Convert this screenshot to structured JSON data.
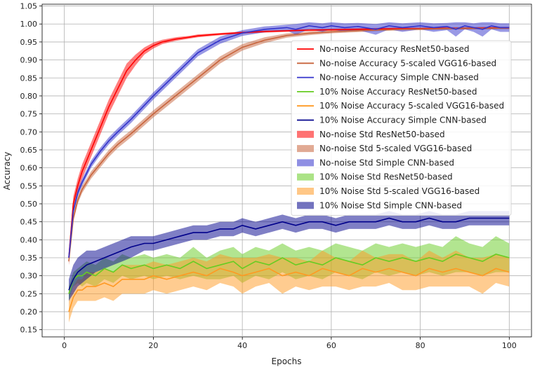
{
  "chart_data": {
    "type": "line",
    "title": "",
    "xlabel": "Epochs",
    "ylabel": "Accuracy",
    "xlim": [
      -5,
      105
    ],
    "ylim": [
      0.13,
      1.055
    ],
    "x_ticks": [
      0,
      20,
      40,
      60,
      80,
      100
    ],
    "y_ticks": [
      0.15,
      0.2,
      0.25,
      0.3,
      0.35,
      0.4,
      0.45,
      0.5,
      0.55,
      0.6,
      0.65,
      0.7,
      0.75,
      0.8,
      0.85,
      0.9,
      0.95,
      1.0,
      1.05
    ],
    "grid": true,
    "legend_position": "upper-right",
    "legend_entries": [
      {
        "label": "No-noise Accuracy ResNet50-based",
        "kind": "line",
        "color": "#ff0000"
      },
      {
        "label": "No-noise Accuracy 5-scaled VGG16-based",
        "kind": "line",
        "color": "#c8643c"
      },
      {
        "label": "No-noise Accuracy Simple CNN-based",
        "kind": "line",
        "color": "#3333cc"
      },
      {
        "label": "10% Noise Accuracy ResNet50-based",
        "kind": "line",
        "color": "#66cc22"
      },
      {
        "label": "10% Noise Accuracy 5-scaled VGG16-based",
        "kind": "line",
        "color": "#ff9922"
      },
      {
        "label": "10% Noise Accuracy Simple CNN-based",
        "kind": "line",
        "color": "#00008b"
      },
      {
        "label": "No-noise Std ResNet50-based",
        "kind": "band",
        "color": "#ff0000",
        "opacity": 0.55
      },
      {
        "label": "No-noise Std 5-scaled VGG16-based",
        "kind": "band",
        "color": "#c8643c",
        "opacity": 0.55
      },
      {
        "label": "No-noise Std Simple CNN-based",
        "kind": "band",
        "color": "#3333cc",
        "opacity": 0.55
      },
      {
        "label": "10% Noise Std ResNet50-based",
        "kind": "band",
        "color": "#66cc22",
        "opacity": 0.55
      },
      {
        "label": "10% Noise Std 5-scaled VGG16-based",
        "kind": "band",
        "color": "#ff9922",
        "opacity": 0.55
      },
      {
        "label": "10% Noise Std Simple CNN-based",
        "kind": "band",
        "color": "#00008b",
        "opacity": 0.55
      }
    ],
    "series": [
      {
        "key": "nn_resnet",
        "color": "#ff0000",
        "x": [
          1,
          2,
          3,
          4,
          5,
          6,
          8,
          10,
          12,
          14,
          16,
          18,
          20,
          22,
          25,
          28,
          30,
          35,
          40,
          45,
          50,
          55,
          60,
          65,
          70,
          75,
          80,
          85,
          90,
          95,
          100
        ],
        "y": [
          0.35,
          0.5,
          0.55,
          0.59,
          0.62,
          0.65,
          0.71,
          0.77,
          0.82,
          0.87,
          0.9,
          0.925,
          0.94,
          0.95,
          0.958,
          0.963,
          0.967,
          0.972,
          0.976,
          0.979,
          0.981,
          0.983,
          0.984,
          0.985,
          0.986,
          0.987,
          0.987,
          0.988,
          0.988,
          0.989,
          0.989
        ],
        "std": [
          0.02,
          0.02,
          0.02,
          0.02,
          0.02,
          0.02,
          0.02,
          0.02,
          0.02,
          0.02,
          0.015,
          0.01,
          0.008,
          0.006,
          0.005,
          0.004,
          0.004,
          0.003,
          0.003,
          0.003,
          0.003,
          0.003,
          0.003,
          0.003,
          0.003,
          0.003,
          0.003,
          0.003,
          0.003,
          0.003,
          0.003
        ]
      },
      {
        "key": "nn_vgg",
        "color": "#c8643c",
        "x": [
          1,
          2,
          3,
          4,
          5,
          6,
          8,
          10,
          12,
          15,
          20,
          25,
          30,
          35,
          40,
          45,
          50,
          55,
          60,
          65,
          70,
          75,
          80,
          85,
          90,
          95,
          100
        ],
        "y": [
          0.34,
          0.46,
          0.51,
          0.54,
          0.56,
          0.58,
          0.61,
          0.64,
          0.665,
          0.695,
          0.75,
          0.8,
          0.85,
          0.9,
          0.935,
          0.955,
          0.968,
          0.974,
          0.978,
          0.981,
          0.983,
          0.985,
          0.986,
          0.987,
          0.988,
          0.988,
          0.989
        ],
        "std": [
          0.01,
          0.01,
          0.01,
          0.01,
          0.01,
          0.01,
          0.01,
          0.01,
          0.01,
          0.01,
          0.01,
          0.01,
          0.01,
          0.01,
          0.009,
          0.008,
          0.006,
          0.005,
          0.004,
          0.004,
          0.003,
          0.003,
          0.003,
          0.003,
          0.003,
          0.003,
          0.003
        ]
      },
      {
        "key": "nn_cnn",
        "color": "#3333cc",
        "x": [
          1,
          2,
          3,
          4,
          5,
          6,
          8,
          10,
          12,
          15,
          20,
          25,
          30,
          35,
          40,
          45,
          50,
          52,
          55,
          58,
          60,
          63,
          66,
          70,
          73,
          76,
          80,
          83,
          86,
          88,
          90,
          92,
          94,
          96,
          98,
          100
        ],
        "y": [
          0.35,
          0.48,
          0.53,
          0.56,
          0.585,
          0.61,
          0.645,
          0.675,
          0.7,
          0.735,
          0.8,
          0.86,
          0.92,
          0.955,
          0.975,
          0.985,
          0.99,
          0.985,
          0.995,
          0.99,
          0.995,
          0.99,
          0.993,
          0.985,
          0.995,
          0.99,
          0.995,
          0.99,
          0.993,
          0.985,
          0.995,
          0.99,
          0.985,
          0.995,
          0.99,
          0.99
        ],
        "std": [
          0.01,
          0.01,
          0.01,
          0.01,
          0.01,
          0.01,
          0.01,
          0.01,
          0.01,
          0.01,
          0.01,
          0.01,
          0.01,
          0.01,
          0.008,
          0.008,
          0.008,
          0.015,
          0.01,
          0.012,
          0.01,
          0.012,
          0.01,
          0.015,
          0.01,
          0.012,
          0.01,
          0.012,
          0.01,
          0.02,
          0.01,
          0.012,
          0.02,
          0.01,
          0.012,
          0.012
        ]
      },
      {
        "key": "noise_resnet",
        "color": "#66cc22",
        "x": [
          1,
          2,
          3,
          4,
          5,
          7,
          9,
          11,
          13,
          15,
          18,
          20,
          23,
          26,
          29,
          32,
          35,
          38,
          40,
          43,
          46,
          49,
          52,
          55,
          58,
          61,
          64,
          67,
          70,
          73,
          76,
          79,
          82,
          85,
          88,
          91,
          94,
          97,
          100
        ],
        "y": [
          0.25,
          0.29,
          0.3,
          0.3,
          0.31,
          0.3,
          0.32,
          0.31,
          0.33,
          0.32,
          0.33,
          0.32,
          0.33,
          0.32,
          0.34,
          0.32,
          0.33,
          0.34,
          0.32,
          0.34,
          0.33,
          0.35,
          0.33,
          0.34,
          0.33,
          0.35,
          0.34,
          0.33,
          0.35,
          0.34,
          0.35,
          0.34,
          0.35,
          0.34,
          0.36,
          0.35,
          0.34,
          0.36,
          0.35
        ],
        "std": [
          0.02,
          0.02,
          0.02,
          0.03,
          0.03,
          0.03,
          0.03,
          0.03,
          0.03,
          0.03,
          0.03,
          0.03,
          0.03,
          0.03,
          0.04,
          0.03,
          0.04,
          0.04,
          0.04,
          0.04,
          0.04,
          0.04,
          0.04,
          0.04,
          0.04,
          0.04,
          0.04,
          0.04,
          0.04,
          0.04,
          0.04,
          0.04,
          0.04,
          0.04,
          0.05,
          0.04,
          0.04,
          0.05,
          0.04
        ]
      },
      {
        "key": "noise_vgg",
        "color": "#ff9922",
        "x": [
          1,
          2,
          3,
          4,
          5,
          7,
          9,
          11,
          13,
          15,
          18,
          20,
          23,
          26,
          29,
          32,
          35,
          38,
          40,
          43,
          46,
          49,
          52,
          55,
          58,
          61,
          64,
          67,
          70,
          73,
          76,
          79,
          82,
          85,
          88,
          91,
          94,
          97,
          100
        ],
        "y": [
          0.2,
          0.24,
          0.26,
          0.26,
          0.27,
          0.27,
          0.28,
          0.27,
          0.29,
          0.29,
          0.29,
          0.3,
          0.29,
          0.3,
          0.31,
          0.3,
          0.32,
          0.31,
          0.3,
          0.31,
          0.32,
          0.3,
          0.31,
          0.3,
          0.32,
          0.31,
          0.3,
          0.32,
          0.31,
          0.32,
          0.31,
          0.3,
          0.32,
          0.31,
          0.32,
          0.31,
          0.3,
          0.32,
          0.31
        ],
        "std": [
          0.03,
          0.03,
          0.03,
          0.03,
          0.04,
          0.04,
          0.04,
          0.04,
          0.04,
          0.04,
          0.04,
          0.04,
          0.04,
          0.04,
          0.04,
          0.04,
          0.04,
          0.04,
          0.05,
          0.04,
          0.04,
          0.05,
          0.04,
          0.04,
          0.05,
          0.04,
          0.04,
          0.05,
          0.04,
          0.04,
          0.05,
          0.04,
          0.05,
          0.04,
          0.05,
          0.04,
          0.05,
          0.04,
          0.04
        ]
      },
      {
        "key": "noise_cnn",
        "color": "#00008b",
        "x": [
          1,
          2,
          3,
          4,
          5,
          7,
          9,
          11,
          13,
          15,
          18,
          20,
          23,
          26,
          29,
          32,
          35,
          38,
          40,
          43,
          46,
          49,
          52,
          55,
          58,
          61,
          64,
          67,
          70,
          73,
          76,
          79,
          82,
          85,
          88,
          91,
          94,
          97,
          100
        ],
        "y": [
          0.26,
          0.29,
          0.31,
          0.32,
          0.33,
          0.34,
          0.35,
          0.36,
          0.37,
          0.38,
          0.39,
          0.39,
          0.4,
          0.41,
          0.42,
          0.42,
          0.43,
          0.43,
          0.44,
          0.43,
          0.44,
          0.45,
          0.44,
          0.45,
          0.45,
          0.44,
          0.45,
          0.45,
          0.45,
          0.46,
          0.45,
          0.45,
          0.46,
          0.45,
          0.45,
          0.46,
          0.46,
          0.46,
          0.46
        ],
        "std": [
          0.03,
          0.04,
          0.04,
          0.04,
          0.04,
          0.03,
          0.03,
          0.03,
          0.03,
          0.03,
          0.02,
          0.02,
          0.02,
          0.02,
          0.02,
          0.02,
          0.02,
          0.02,
          0.02,
          0.02,
          0.02,
          0.02,
          0.02,
          0.02,
          0.02,
          0.02,
          0.02,
          0.02,
          0.02,
          0.02,
          0.02,
          0.02,
          0.02,
          0.02,
          0.02,
          0.02,
          0.02,
          0.02,
          0.02
        ]
      }
    ]
  }
}
